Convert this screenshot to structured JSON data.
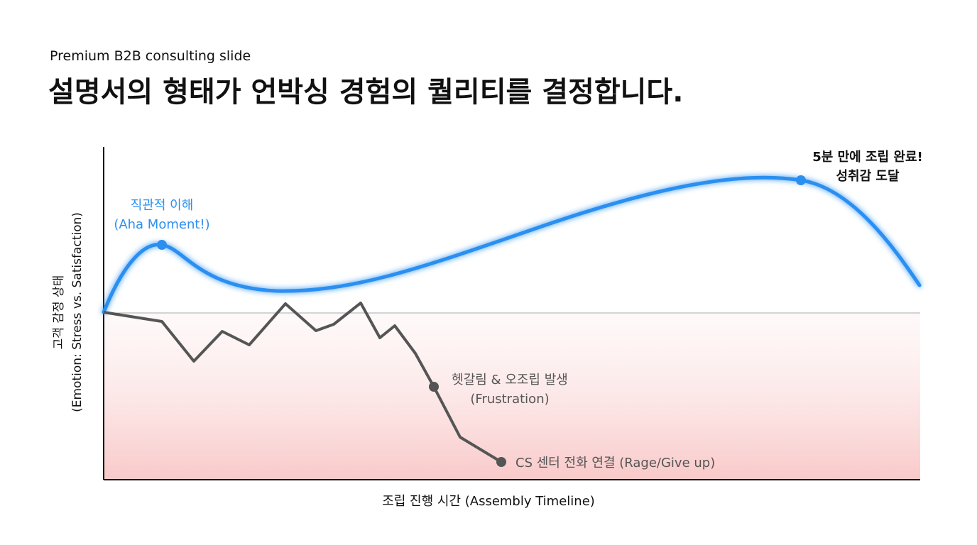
{
  "header": {
    "subtitle": "Premium B2B consulting slide",
    "title": "설명서의 형태가 언박싱 경험의 퀄리티를 결정합니다."
  },
  "axes": {
    "y_label": [
      "고객 감정 상태",
      "(Emotion: Stress vs. Satisfaction)"
    ],
    "x_label": "조립 진행 시간 (Assembly Timeline)"
  },
  "annotations": {
    "aha": [
      "직관적 이해",
      "(Aha Moment!)"
    ],
    "complete": [
      "5분 만에 조립 완료!",
      "성취감 도달"
    ],
    "frustration": [
      "헷갈림 & 오조립 발생",
      "(Frustration)"
    ],
    "rage": "CS 센터 전화 연결 (Rage/Give up)"
  }
}
